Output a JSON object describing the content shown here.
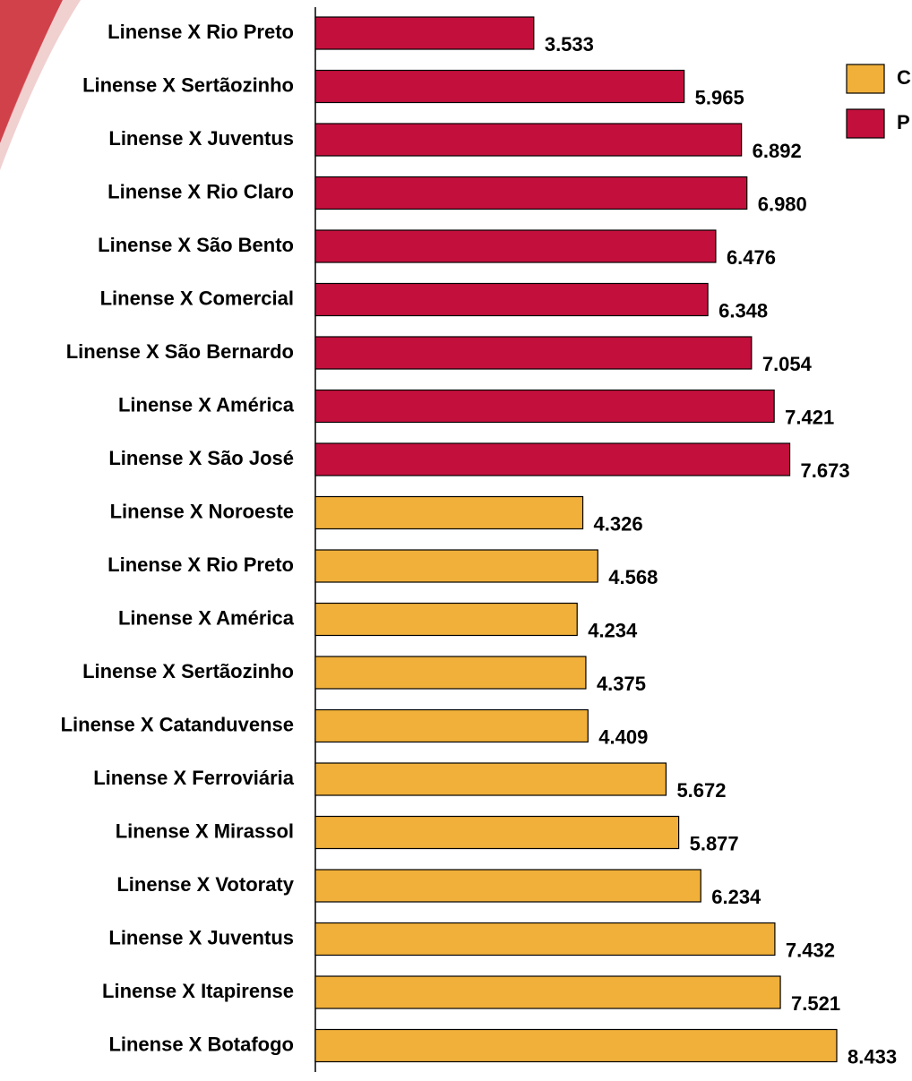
{
  "chart_data": {
    "type": "barh",
    "categories": [
      "Linense X Rio Preto",
      "Linense X Sertãozinho",
      "Linense X Juventus",
      "Linense X Rio Claro",
      "Linense X São Bento",
      "Linense X Comercial",
      "Linense X São Bernardo",
      "Linense X América",
      "Linense X São José",
      "Linense X Noroeste",
      "Linense X Rio Preto",
      "Linense X América",
      "Linense X Sertãozinho",
      "Linense X Catanduvense",
      "Linense X Ferroviária",
      "Linense X Mirassol",
      "Linense X Votoraty",
      "Linense X Juventus",
      "Linense X Itapirense",
      "Linense X Botafogo"
    ],
    "series": [
      {
        "name": "C",
        "color": "#f0b03a",
        "values": [
          null,
          null,
          null,
          null,
          null,
          null,
          null,
          null,
          null,
          4326,
          4568,
          4234,
          4375,
          4409,
          5672,
          5877,
          6234,
          7432,
          7521,
          8433
        ],
        "value_labels": [
          null,
          null,
          null,
          null,
          null,
          null,
          null,
          null,
          null,
          "4.326",
          "4.568",
          "4.234",
          "4.375",
          "4.409",
          "5.672",
          "5.877",
          "6.234",
          "7.432",
          "7.521",
          "8.433"
        ]
      },
      {
        "name": "P",
        "color": "#c30f3c",
        "values": [
          3533,
          5965,
          6892,
          6980,
          6476,
          6348,
          7054,
          7421,
          7673,
          null,
          null,
          null,
          null,
          null,
          null,
          null,
          null,
          null,
          null,
          null
        ],
        "value_labels": [
          "3.533",
          "5.965",
          "6.892",
          "6.980",
          "6.476",
          "6.348",
          "7.054",
          "7.421",
          "7.673",
          null,
          null,
          null,
          null,
          null,
          null,
          null,
          null,
          null,
          null,
          null
        ]
      }
    ],
    "legend": "upper right"
  }
}
